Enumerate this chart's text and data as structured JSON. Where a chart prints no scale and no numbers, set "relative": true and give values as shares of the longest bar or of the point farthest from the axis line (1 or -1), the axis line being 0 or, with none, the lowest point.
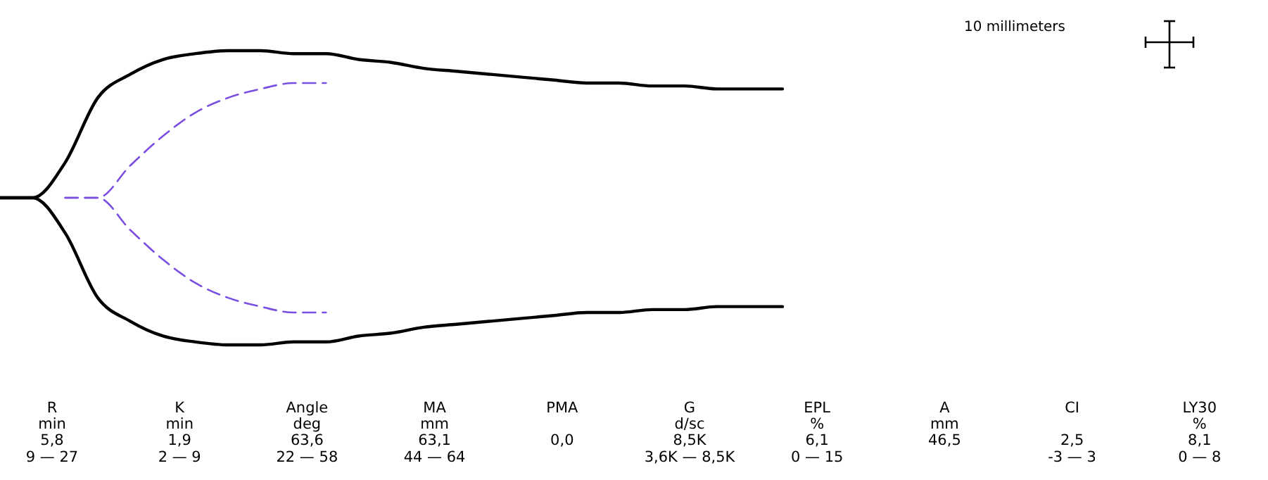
{
  "chart_data": {
    "type": "line",
    "relative": true,
    "categories": [
      null,
      null,
      null,
      null,
      null,
      null,
      null,
      null,
      null,
      null,
      null,
      null,
      null,
      null,
      null,
      null,
      null,
      null,
      null,
      null,
      null,
      null,
      null,
      null,
      null
    ],
    "series": [
      {
        "color": "#000000",
        "line_style": "solid",
        "values": [
          0.5,
          0.5,
          0.62,
          0.84,
          0.92,
          0.97,
          0.99,
          1,
          1,
          0.99,
          0.99,
          0.97,
          0.96,
          0.94,
          0.93,
          0.92,
          0.91,
          0.9,
          0.89,
          0.89,
          0.88,
          0.88,
          0.87,
          0.87,
          0.87
        ]
      },
      {
        "color": "#000000",
        "line_style": "solid",
        "values": [
          0.5,
          0.5,
          0.38,
          0.16,
          0.08,
          0.03,
          0.01,
          0,
          0,
          0.01,
          0.01,
          0.03,
          0.04,
          0.06,
          0.07,
          0.08,
          0.09,
          0.1,
          0.11,
          0.11,
          0.12,
          0.12,
          0.13,
          0.13,
          0.13
        ]
      },
      {
        "color": "#7a4ee0",
        "line_style": "dashed",
        "values": [
          null,
          null,
          0.5,
          0.5,
          0.61,
          0.71,
          0.79,
          0.84,
          0.87,
          0.89,
          0.89,
          null,
          null,
          null,
          null,
          null,
          null,
          null,
          null,
          null,
          null,
          null,
          null,
          null,
          null
        ]
      },
      {
        "color": "#7a4ee0",
        "line_style": "dashed",
        "values": [
          null,
          null,
          0.5,
          0.5,
          0.39,
          0.29,
          0.21,
          0.16,
          0.13,
          0.11,
          0.11,
          null,
          null,
          null,
          null,
          null,
          null,
          null,
          null,
          null,
          null,
          null,
          null,
          null,
          null
        ]
      }
    ],
    "annotations": [
      "10 millimeters",
      "R\nmin\n5,8\n9 — 27",
      "K\nmin\n1,9\n2 — 9",
      "Angle\ndeg\n63,6\n22 — 58",
      "MA\nmm\n63,1\n44 — 64",
      "PMA\n\n0,0\n",
      "G\nd/sc\n8,5K\n3,6K — 8,5K",
      "EPL\n%\n6,1\n0 — 15",
      "A\nmm\n46,5\n",
      "CI\n\n2,5\n-3 — 3",
      "LY30\n%\n8,1\n0 — 8"
    ]
  }
}
